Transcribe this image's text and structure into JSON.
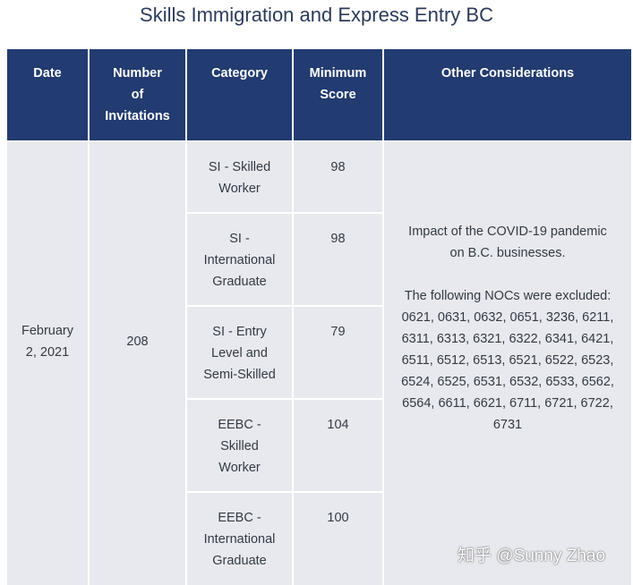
{
  "title": "Skills Immigration and Express Entry BC",
  "headers": {
    "date": "Date",
    "invitations": [
      "Number",
      "of",
      "Invitations"
    ],
    "category": "Category",
    "min_score": [
      "Minimum",
      "Score"
    ],
    "other": "Other Considerations"
  },
  "row": {
    "date": [
      "February",
      "2, 2021"
    ],
    "invitations": "208",
    "categories": [
      {
        "lines": [
          "SI - Skilled",
          "Worker"
        ],
        "score": "98"
      },
      {
        "lines": [
          "SI -",
          "International",
          "Graduate"
        ],
        "score": "98"
      },
      {
        "lines": [
          "SI - Entry",
          "Level and",
          "Semi-Skilled"
        ],
        "score": "79"
      },
      {
        "lines": [
          "EEBC -",
          "Skilled",
          "Worker"
        ],
        "score": "104"
      },
      {
        "lines": [
          "EEBC -",
          "International",
          "Graduate"
        ],
        "score": "100"
      }
    ],
    "other": {
      "impact": [
        "Impact of the COVID-19 pandemic",
        "on B.C. businesses."
      ],
      "nocs_intro": "The following NOCs were excluded:",
      "nocs_lines": [
        "0621, 0631, 0632, 0651, 3236, 6211,",
        "6311, 6313, 6321, 6322, 6341, 6421,",
        "6511, 6512, 6513, 6521, 6522, 6523,",
        "6524, 6525, 6531, 6532, 6533, 6562,",
        "6564, 6611, 6621, 6711, 6721, 6722,",
        "6731"
      ]
    }
  },
  "watermark": "知乎 @Sunny Zhao"
}
